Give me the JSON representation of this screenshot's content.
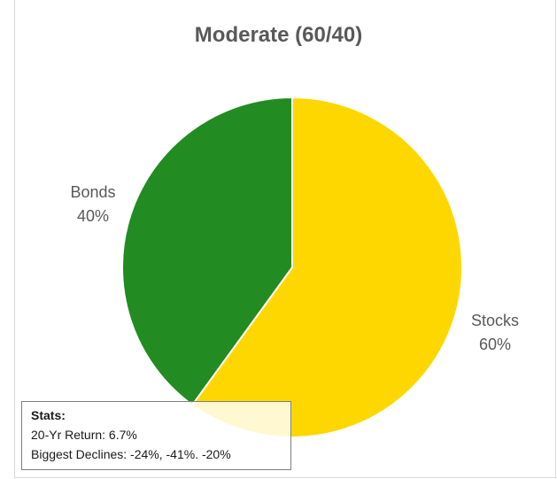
{
  "chart_data": {
    "type": "pie",
    "title": "Moderate (60/40)",
    "slices": [
      {
        "label": "Stocks",
        "value": 60,
        "display": "60%",
        "color": "#FFD700"
      },
      {
        "label": "Bonds",
        "value": 40,
        "display": "40%",
        "color": "#228B22"
      }
    ],
    "start_angle_deg": 0,
    "direction": "clockwise",
    "slice_border_color": "#FFFFFF"
  },
  "stats": {
    "heading": "Stats:",
    "line1": "20-Yr Return: 6.7%",
    "line2": "Biggest Declines: -24%, -41%. -20%"
  }
}
